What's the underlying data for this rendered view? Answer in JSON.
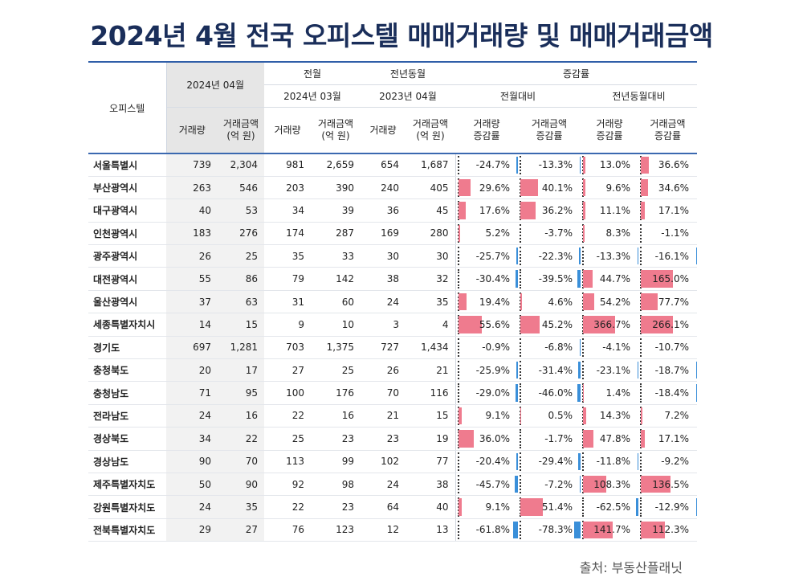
{
  "title": "2024년 4월 전국 오피스텔 매매거래량 및 매매거래금액",
  "source": "출처: 부동산플래닛",
  "colors": {
    "title": "#1a2e5a",
    "positive_bar": "#ef7b8e",
    "negative_bar": "#3a8fd9"
  },
  "chart_data": {
    "type": "table",
    "header": {
      "region": "오피스텔",
      "current": "2024년 04월",
      "prev_month": "전월",
      "prev_month_date": "2024년 03월",
      "prev_year": "전년동월",
      "prev_year_date": "2023년 04월",
      "change": "증감률",
      "mom": "전월대비",
      "yoy": "전년동월대비",
      "volume": "거래량",
      "amount": "거래금액",
      "amount_unit": "(억 원)",
      "volume_change": "거래량",
      "amount_change": "거래금액",
      "change_suffix": "증감률"
    },
    "rows": [
      {
        "region": "서울특별시",
        "v24_4": 739,
        "a24_4": "2,304",
        "v24_3": 981,
        "a24_3": "2,659",
        "v23_4": 654,
        "a23_4": "1,687",
        "mom_v": -24.7,
        "mom_a": -13.3,
        "yoy_v": 13.0,
        "yoy_a": 36.6
      },
      {
        "region": "부산광역시",
        "v24_4": 263,
        "a24_4": "546",
        "v24_3": 203,
        "a24_3": "390",
        "v23_4": 240,
        "a23_4": "405",
        "mom_v": 29.6,
        "mom_a": 40.1,
        "yoy_v": 9.6,
        "yoy_a": 34.6
      },
      {
        "region": "대구광역시",
        "v24_4": 40,
        "a24_4": "53",
        "v24_3": 34,
        "a24_3": "39",
        "v23_4": 36,
        "a23_4": "45",
        "mom_v": 17.6,
        "mom_a": 36.2,
        "yoy_v": 11.1,
        "yoy_a": 17.1
      },
      {
        "region": "인천광역시",
        "v24_4": 183,
        "a24_4": "276",
        "v24_3": 174,
        "a24_3": "287",
        "v23_4": 169,
        "a23_4": "280",
        "mom_v": 5.2,
        "mom_a": -3.7,
        "yoy_v": 8.3,
        "yoy_a": -1.1
      },
      {
        "region": "광주광역시",
        "v24_4": 26,
        "a24_4": "25",
        "v24_3": 35,
        "a24_3": "33",
        "v23_4": 30,
        "a23_4": "30",
        "mom_v": -25.7,
        "mom_a": -22.3,
        "yoy_v": -13.3,
        "yoy_a": -16.1
      },
      {
        "region": "대전광역시",
        "v24_4": 55,
        "a24_4": "86",
        "v24_3": 79,
        "a24_3": "142",
        "v23_4": 38,
        "a23_4": "32",
        "mom_v": -30.4,
        "mom_a": -39.5,
        "yoy_v": 44.7,
        "yoy_a": 165.0
      },
      {
        "region": "울산광역시",
        "v24_4": 37,
        "a24_4": "63",
        "v24_3": 31,
        "a24_3": "60",
        "v23_4": 24,
        "a23_4": "35",
        "mom_v": 19.4,
        "mom_a": 4.6,
        "yoy_v": 54.2,
        "yoy_a": 77.7
      },
      {
        "region": "세종특별자치시",
        "v24_4": 14,
        "a24_4": "15",
        "v24_3": 9,
        "a24_3": "10",
        "v23_4": 3,
        "a23_4": "4",
        "mom_v": 55.6,
        "mom_a": 45.2,
        "yoy_v": 366.7,
        "yoy_a": 266.1
      },
      {
        "region": "경기도",
        "v24_4": 697,
        "a24_4": "1,281",
        "v24_3": 703,
        "a24_3": "1,375",
        "v23_4": 727,
        "a23_4": "1,434",
        "mom_v": -0.9,
        "mom_a": -6.8,
        "yoy_v": -4.1,
        "yoy_a": -10.7
      },
      {
        "region": "충청북도",
        "v24_4": 20,
        "a24_4": "17",
        "v24_3": 27,
        "a24_3": "25",
        "v23_4": 26,
        "a23_4": "21",
        "mom_v": -25.9,
        "mom_a": -31.4,
        "yoy_v": -23.1,
        "yoy_a": -18.7
      },
      {
        "region": "충청남도",
        "v24_4": 71,
        "a24_4": "95",
        "v24_3": 100,
        "a24_3": "176",
        "v23_4": 70,
        "a23_4": "116",
        "mom_v": -29.0,
        "mom_a": -46.0,
        "yoy_v": 1.4,
        "yoy_a": -18.4
      },
      {
        "region": "전라남도",
        "v24_4": 24,
        "a24_4": "16",
        "v24_3": 22,
        "a24_3": "16",
        "v23_4": 21,
        "a23_4": "15",
        "mom_v": 9.1,
        "mom_a": 0.5,
        "yoy_v": 14.3,
        "yoy_a": 7.2
      },
      {
        "region": "경상북도",
        "v24_4": 34,
        "a24_4": "22",
        "v24_3": 25,
        "a24_3": "23",
        "v23_4": 23,
        "a23_4": "19",
        "mom_v": 36.0,
        "mom_a": -1.7,
        "yoy_v": 47.8,
        "yoy_a": 17.1
      },
      {
        "region": "경상남도",
        "v24_4": 90,
        "a24_4": "70",
        "v24_3": 113,
        "a24_3": "99",
        "v23_4": 102,
        "a23_4": "77",
        "mom_v": -20.4,
        "mom_a": -29.4,
        "yoy_v": -11.8,
        "yoy_a": -9.2
      },
      {
        "region": "제주특별자치도",
        "v24_4": 50,
        "a24_4": "90",
        "v24_3": 92,
        "a24_3": "98",
        "v23_4": 24,
        "a23_4": "38",
        "mom_v": -45.7,
        "mom_a": -7.2,
        "yoy_v": 108.3,
        "yoy_a": 136.5
      },
      {
        "region": "강원특별자치도",
        "v24_4": 24,
        "a24_4": "35",
        "v24_3": 22,
        "a24_3": "23",
        "v23_4": 64,
        "a23_4": "40",
        "mom_v": 9.1,
        "mom_a": 51.4,
        "yoy_v": -62.5,
        "yoy_a": -12.9
      },
      {
        "region": "전북특별자치도",
        "v24_4": 29,
        "a24_4": "27",
        "v24_3": 76,
        "a24_3": "123",
        "v23_4": 12,
        "a23_4": "13",
        "mom_v": -61.8,
        "mom_a": -78.3,
        "yoy_v": 141.7,
        "yoy_a": 112.3
      }
    ]
  }
}
